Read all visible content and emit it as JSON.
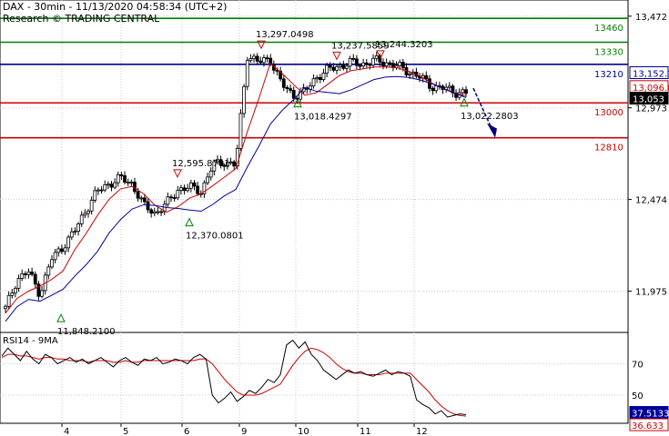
{
  "header": {
    "title": "DAX - 30min - 11/13/2020 04:58:34 (UTC+2)",
    "source": "Research © TRADING CENTRAL"
  },
  "colors": {
    "candle": "#000000",
    "ma_fast": "#cc0000",
    "ma_slow": "#000099",
    "support": "#cc0000",
    "resistance": "#008000",
    "pivot": "#000099",
    "forecast_arrow": "#000080",
    "grid": "#c8c8c8"
  },
  "chart_data": [
    {
      "type": "candlestick",
      "title": "DAX - 30min - 11/13/2020 04:58:34 (UTC+2)",
      "x_ticks": [
        "4",
        "5",
        "6",
        "9",
        "10",
        "11",
        "12"
      ],
      "y_ticks": [
        "13,472",
        "12,973",
        "12,474",
        "11,975"
      ],
      "y_tick_values": [
        13472,
        12973,
        12474,
        11975
      ],
      "ylim": [
        11750,
        13560
      ],
      "grid": true,
      "levels": [
        {
          "label": "13460",
          "value": 13460,
          "kind": "resistance"
        },
        {
          "label": "13330",
          "value": 13330,
          "kind": "resistance"
        },
        {
          "label": "13210",
          "value": 13210,
          "kind": "pivot"
        },
        {
          "label": "13000",
          "value": 13000,
          "kind": "support"
        },
        {
          "label": "12810",
          "value": 12810,
          "kind": "support"
        }
      ],
      "last_price_labels": [
        {
          "label": "13,152.1",
          "value": 13152,
          "color": "#000099"
        },
        {
          "label": "13,096.0",
          "value": 13096,
          "color": "#cc0000"
        },
        {
          "label": "13,053",
          "value": 13053,
          "color": "#000000"
        }
      ],
      "annotations": [
        {
          "label": "13,297.0498",
          "value": 13297,
          "type": "high"
        },
        {
          "label": "13,237.5859",
          "value": 13237,
          "type": "high"
        },
        {
          "label": "13,244.3203",
          "value": 13244,
          "type": "high"
        },
        {
          "label": "12,595.8701",
          "value": 12596,
          "type": "high"
        },
        {
          "label": "13,018.4297",
          "value": 13018,
          "type": "low"
        },
        {
          "label": "13,022.2803",
          "value": 13022,
          "type": "low"
        },
        {
          "label": "12,370.0801",
          "value": 12370,
          "type": "low"
        },
        {
          "label": "11,848.2100",
          "value": 11848,
          "type": "low"
        }
      ],
      "close_path": [
        11880,
        12040,
        12080,
        11960,
        12150,
        12220,
        12300,
        12420,
        12520,
        12560,
        12590,
        12560,
        12440,
        12400,
        12450,
        12530,
        12540,
        12520,
        12660,
        12680,
        12660,
        13260,
        13220,
        13240,
        13100,
        13040,
        13060,
        13140,
        13180,
        13200,
        13220,
        13210,
        13230,
        13220,
        13200,
        13170,
        13140,
        13090,
        13080,
        13060,
        13053
      ]
    },
    {
      "type": "line",
      "title": "RSI14 - 9MA",
      "y_ticks": [
        "70",
        "50"
      ],
      "y_tick_values": [
        70,
        50
      ],
      "ylim": [
        32,
        90
      ],
      "last_value_labels": [
        {
          "label": "37.5133",
          "value": 37.5,
          "color": "#000099"
        },
        {
          "label": "36.633",
          "value": 36.6,
          "color": "#cc0000"
        }
      ],
      "rsi": [
        75,
        80,
        76,
        72,
        78,
        73,
        70,
        76,
        74,
        70,
        72,
        74,
        71,
        73,
        70,
        72,
        74,
        71,
        68,
        72,
        74,
        71,
        69,
        73,
        72,
        74,
        70,
        71,
        73,
        72,
        70,
        74,
        76,
        73,
        50,
        45,
        48,
        52,
        46,
        49,
        53,
        51,
        55,
        60,
        58,
        63,
        82,
        85,
        80,
        84,
        76,
        72,
        66,
        63,
        60,
        63,
        66,
        64,
        65,
        63,
        62,
        64,
        66,
        63,
        65,
        64,
        62,
        47,
        44,
        42,
        38,
        40,
        36,
        37,
        38,
        37.5
      ],
      "rsi_ma": [
        74,
        76,
        76,
        75,
        75,
        74,
        73,
        74,
        74,
        73,
        73,
        72,
        72,
        72,
        71,
        72,
        72,
        72,
        71,
        71,
        72,
        71,
        71,
        72,
        72,
        72,
        72,
        72,
        72,
        72,
        72,
        72,
        73,
        73,
        70,
        65,
        60,
        56,
        52,
        50,
        50,
        50,
        51,
        53,
        55,
        57,
        63,
        69,
        74,
        78,
        80,
        79,
        77,
        74,
        70,
        67,
        65,
        64,
        64,
        63,
        63,
        63,
        64,
        64,
        64,
        64,
        64,
        60,
        56,
        52,
        47,
        43,
        40,
        38,
        37,
        36.6
      ]
    }
  ]
}
